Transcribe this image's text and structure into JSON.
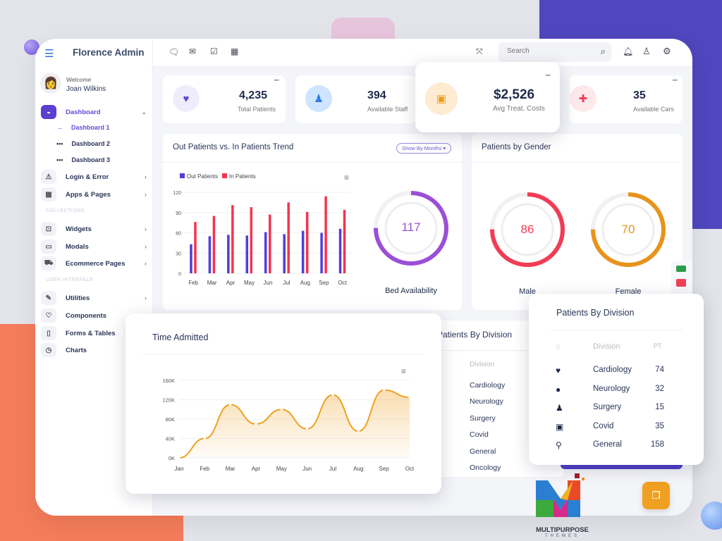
{
  "app": {
    "title": "Florence Admin"
  },
  "user": {
    "welcome": "Welcome",
    "name": "Joan Wilkins"
  },
  "sidebar": {
    "dashboard": "Dashboard",
    "sub": [
      "Dashboard 1",
      "Dashboard 2",
      "Dashboard 3"
    ],
    "items1": [
      {
        "label": "Login & Error",
        "icon": "warning-icon"
      },
      {
        "label": "Apps & Pages",
        "icon": "grid-icon"
      }
    ],
    "section1": "COLLECTIONS",
    "items2": [
      {
        "label": "Widgets",
        "icon": "widget-icon"
      },
      {
        "label": "Modals",
        "icon": "modal-icon"
      },
      {
        "label": "Ecommerce Pages",
        "icon": "cart-icon"
      }
    ],
    "section2": "USER INTERFACE",
    "items3": [
      {
        "label": "Utilities",
        "icon": "edit-icon"
      },
      {
        "label": "Components",
        "icon": "trophy-icon"
      },
      {
        "label": "Forms & Tables",
        "icon": "file-icon"
      },
      {
        "label": "Charts",
        "icon": "clock-icon"
      }
    ]
  },
  "header": {
    "search_placeholder": "Search"
  },
  "stats": [
    {
      "value": "4,235",
      "label": "Total Patients",
      "icon": "heartbeat-icon",
      "color": "#5b4bd5"
    },
    {
      "value": "394",
      "label": "Available Staff",
      "icon": "doctor-icon",
      "color": "#2e7ee6"
    },
    {
      "value": "$2,526",
      "label": "Avg Treat. Costs",
      "icon": "money-icon",
      "color": "#f09a1a"
    },
    {
      "value": "35",
      "label": "Available Cars",
      "icon": "ambulance-icon",
      "color": "#f03e57"
    }
  ],
  "trend": {
    "title": "Out Patients vs. In Patients Trend",
    "filter": "Show By Months ▾"
  },
  "bed": {
    "value": "117",
    "label": "Bed Availability",
    "percent": 75,
    "color": "#9b4fd6"
  },
  "gender": {
    "title": "Patients by Gender",
    "male": {
      "value": "86",
      "label": "Male",
      "percent": 75,
      "color": "#f23c55"
    },
    "female": {
      "value": "70",
      "label": "Female",
      "percent": 75,
      "color": "#e8931c"
    }
  },
  "time": {
    "title": "Time Admitted"
  },
  "division": {
    "title": "Patients By Division",
    "col_division": "Division",
    "col_pt": "PT.",
    "rows": [
      {
        "name": "Cardiology",
        "pt": "74",
        "icon": "heart-icon"
      },
      {
        "name": "Neurology",
        "pt": "32",
        "icon": "user-icon"
      },
      {
        "name": "Surgery",
        "pt": "15",
        "icon": "surgeon-icon"
      },
      {
        "name": "Covid",
        "pt": "35",
        "icon": "medkit-icon"
      },
      {
        "name": "General",
        "pt": "158",
        "icon": "stethoscope-icon"
      }
    ],
    "bg_rows": [
      "Cardiology",
      "Neurology",
      "Surgery",
      "Covid",
      "General",
      "Oncology"
    ]
  },
  "logo": {
    "name": "MULTIPURPOSE",
    "sub": "THEMES"
  },
  "chart_data": [
    {
      "type": "bar",
      "categories": [
        "Feb",
        "Mar",
        "Apr",
        "May",
        "Jun",
        "Jul",
        "Aug",
        "Sep",
        "Oct"
      ],
      "series": [
        {
          "name": "Out Patients",
          "color": "#4f3fd8",
          "values": [
            43,
            55,
            57,
            56,
            61,
            58,
            63,
            60,
            66
          ]
        },
        {
          "name": "In Patients",
          "color": "#f5344e",
          "values": [
            76,
            85,
            101,
            98,
            87,
            105,
            91,
            114,
            94
          ]
        }
      ],
      "yticks": [
        0,
        30,
        60,
        90,
        120
      ],
      "ylim": [
        0,
        120
      ],
      "legend": "top-left"
    },
    {
      "type": "area",
      "categories": [
        "Jan",
        "Feb",
        "Mar",
        "Apr",
        "May",
        "Jun",
        "Jul",
        "Aug",
        "Sep",
        "Oct"
      ],
      "values": [
        0,
        40,
        110,
        70,
        100,
        60,
        130,
        55,
        140,
        125
      ],
      "yticks": [
        "0K",
        "40K",
        "80K",
        "120K",
        "160K"
      ],
      "ylim": [
        0,
        160
      ],
      "color": "#f0a020"
    }
  ]
}
